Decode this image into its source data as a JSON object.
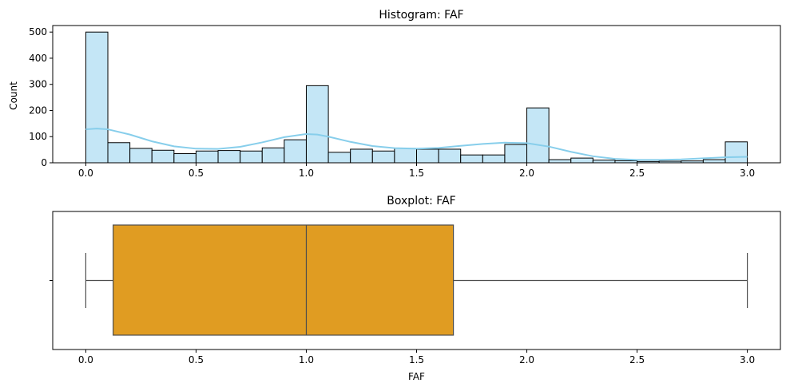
{
  "chart_data": [
    {
      "type": "bar",
      "title": "Histogram: FAF",
      "xlabel": "",
      "ylabel": "Count",
      "xlim": [
        -0.15,
        3.15
      ],
      "ylim": [
        0,
        525
      ],
      "grid": false,
      "bin_edges": [
        0.0,
        0.1,
        0.2,
        0.3,
        0.4,
        0.5,
        0.6,
        0.7,
        0.8,
        0.9,
        1.0,
        1.1,
        1.2,
        1.3,
        1.4,
        1.5,
        1.6,
        1.7,
        1.8,
        1.9,
        2.0,
        2.1,
        2.2,
        2.3,
        2.4,
        2.5,
        2.6,
        2.7,
        2.8,
        2.9,
        3.0
      ],
      "values": [
        500,
        77,
        55,
        48,
        35,
        45,
        47,
        45,
        57,
        88,
        295,
        40,
        52,
        45,
        55,
        52,
        52,
        30,
        30,
        70,
        210,
        12,
        18,
        10,
        8,
        5,
        6,
        7,
        12,
        80
      ],
      "kde": {
        "x": [
          0,
          0.05,
          0.1,
          0.2,
          0.3,
          0.4,
          0.5,
          0.6,
          0.7,
          0.8,
          0.9,
          1.0,
          1.05,
          1.1,
          1.2,
          1.3,
          1.4,
          1.5,
          1.6,
          1.7,
          1.8,
          1.9,
          2.0,
          2.1,
          2.2,
          2.3,
          2.4,
          2.5,
          2.6,
          2.7,
          2.8,
          2.9,
          3.0
        ],
        "y": [
          128,
          131,
          128,
          108,
          82,
          63,
          54,
          53,
          61,
          78,
          98,
          110,
          108,
          100,
          80,
          64,
          56,
          54,
          57,
          65,
          72,
          77,
          75,
          62,
          42,
          25,
          15,
          11,
          11,
          13,
          17,
          21,
          23
        ]
      },
      "xticks": [
        0.0,
        0.5,
        1.0,
        1.5,
        2.0,
        2.5,
        3.0
      ],
      "xticklabels": [
        "0.0",
        "0.5",
        "1.0",
        "1.5",
        "2.0",
        "2.5",
        "3.0"
      ],
      "yticks": [
        0,
        100,
        200,
        300,
        400,
        500
      ],
      "yticklabels": [
        "0",
        "100",
        "200",
        "300",
        "400",
        "500"
      ],
      "colors": {
        "bar_fill": "#c4e6f6",
        "bar_edge": "#000000",
        "kde_line": "#87ceeb"
      }
    },
    {
      "type": "box",
      "title": "Boxplot: FAF",
      "xlabel": "FAF",
      "ylabel": "",
      "xlim": [
        -0.15,
        3.15
      ],
      "stats": {
        "whislo": 0.0,
        "q1": 0.124,
        "med": 1.0,
        "q3": 1.667,
        "whishi": 3.0
      },
      "xticks": [
        0.0,
        0.5,
        1.0,
        1.5,
        2.0,
        2.5,
        3.0
      ],
      "xticklabels": [
        "0.0",
        "0.5",
        "1.0",
        "1.5",
        "2.0",
        "2.5",
        "3.0"
      ],
      "colors": {
        "box_fill": "#e09c22",
        "lines": "#4d4d4d"
      }
    }
  ]
}
